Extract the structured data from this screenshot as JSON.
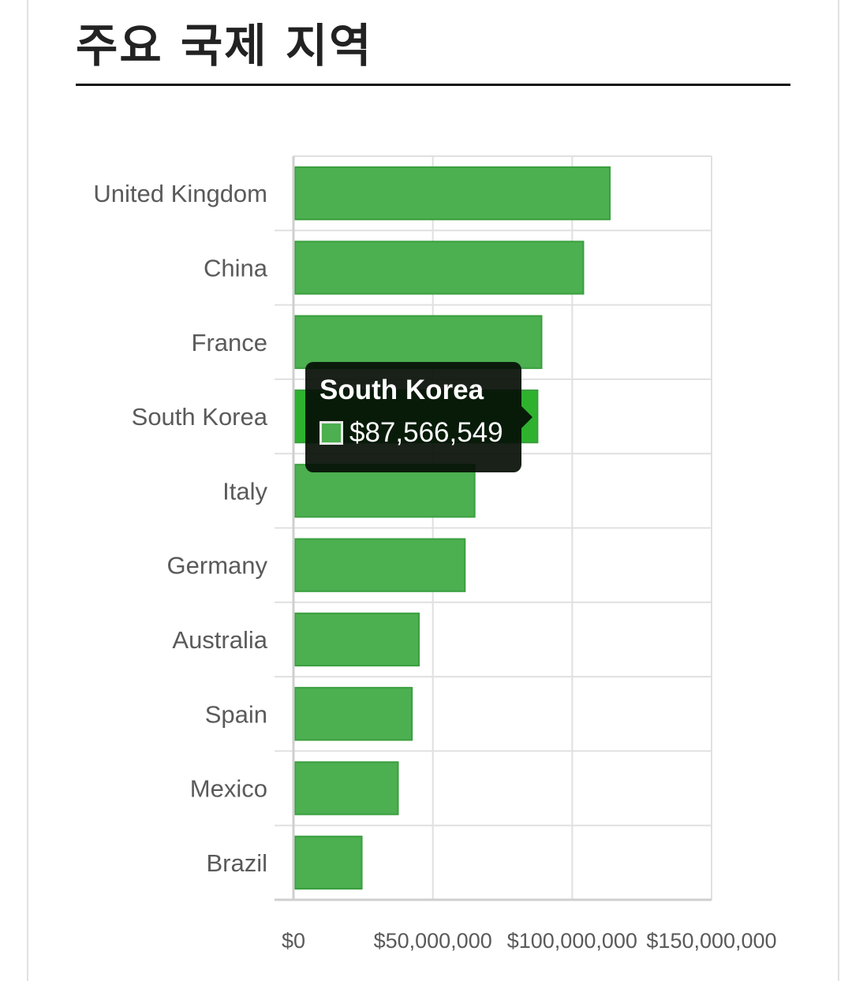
{
  "page": {
    "title": "주요 국제 지역"
  },
  "colors": {
    "bar": "#4caf50",
    "bar_active": "#2eb22e",
    "bar_border": "#3b9f3f",
    "grid": "#e0e0e0",
    "axis": "#cfcfcf",
    "label": "#5a5a5a"
  },
  "tooltip": {
    "title": "South Korea",
    "value": "$87,566,549",
    "swatch_color": "#4caf50"
  },
  "chart_data": {
    "type": "bar",
    "orientation": "horizontal",
    "title": "",
    "xlabel": "",
    "ylabel": "",
    "categories": [
      "United Kingdom",
      "China",
      "France",
      "South Korea",
      "Italy",
      "Germany",
      "Australia",
      "Spain",
      "Mexico",
      "Brazil"
    ],
    "values": [
      113500000,
      104000000,
      89000000,
      87566549,
      65000000,
      61500000,
      45000000,
      42500000,
      37500000,
      24500000
    ],
    "xlim": [
      0,
      150000000
    ],
    "xticks": [
      "$0",
      "$50,000,000",
      "$100,000,000",
      "$150,000,000"
    ],
    "xtick_values": [
      0,
      50000000,
      100000000,
      150000000
    ],
    "highlighted": "South Korea",
    "grid": true,
    "legend": "none"
  }
}
